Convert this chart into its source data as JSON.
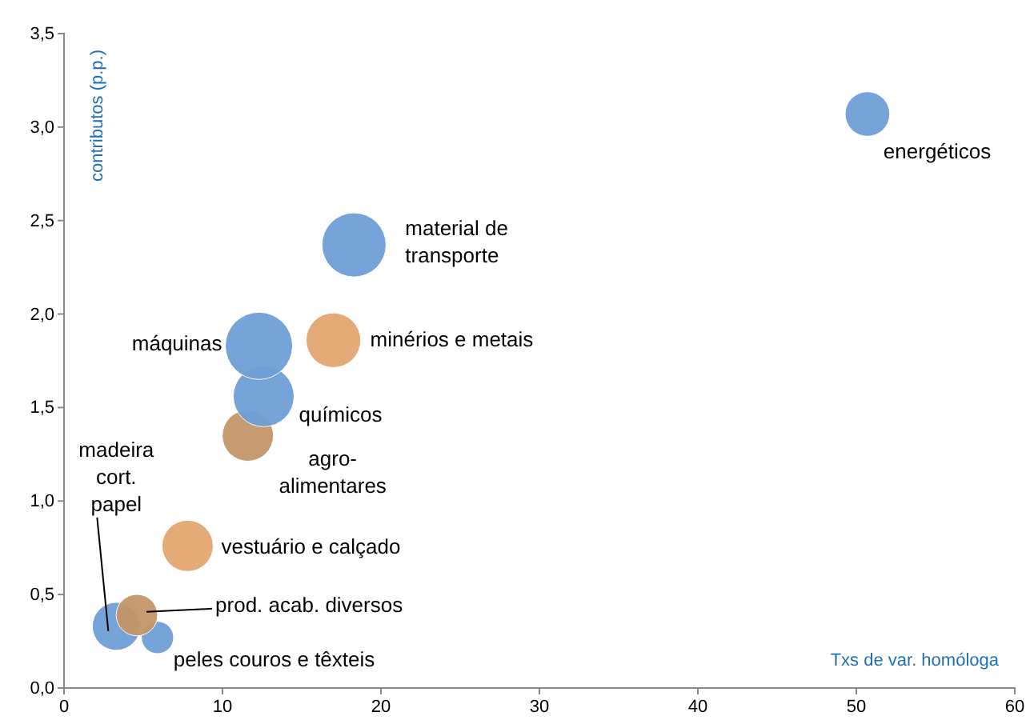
{
  "chart_data": {
    "type": "bubble",
    "xlabel": "Txs de var. homóloga",
    "ylabel": "contributos (p.p.)",
    "x": [
      50.7,
      18.3,
      12.3,
      17.0,
      12.6,
      11.6,
      7.8,
      4.6,
      3.3,
      5.9
    ],
    "values": [
      3.07,
      2.37,
      1.83,
      1.86,
      1.56,
      1.35,
      0.76,
      0.39,
      0.33,
      0.27
    ],
    "sizes": [
      0.44,
      0.91,
      1,
      0.66,
      0.82,
      0.58,
      0.58,
      0.38,
      0.51,
      0.23
    ],
    "colors": [
      "#6f9fd6",
      "#6f9fd6",
      "#6f9fd6",
      "#e3a670",
      "#6f9fd6",
      "#c4966a",
      "#e3a670",
      "#c4966a",
      "#6f9fd6",
      "#6f9fd6"
    ],
    "annotations": [
      {
        "text": "energéticos",
        "x": 50.7,
        "y": 3.07
      },
      {
        "text": "material de\ntransporte",
        "x": 18.3,
        "y": 2.37
      },
      {
        "text": "máquinas",
        "x": 12.3,
        "y": 1.83
      },
      {
        "text": "minérios e metais",
        "x": 17.0,
        "y": 1.86
      },
      {
        "text": "químicos",
        "x": 12.6,
        "y": 1.56
      },
      {
        "text": "agro-\nalimentares",
        "x": 11.6,
        "y": 1.35
      },
      {
        "text": "vestuário e calçado",
        "x": 7.8,
        "y": 0.76
      },
      {
        "text": "prod. acab. diversos",
        "x": 4.6,
        "y": 0.39
      },
      {
        "text": "madeira\ncort.\npapel",
        "x": 3.3,
        "y": 0.33
      },
      {
        "text": "peles couros e têxteis",
        "x": 5.9,
        "y": 0.27
      }
    ],
    "xlim": [
      0,
      60
    ],
    "xticks": [
      0,
      10,
      20,
      30,
      40,
      50,
      60
    ],
    "ylim": [
      0,
      3.5
    ],
    "yticks": [
      {
        "value": 0,
        "label": "0,0"
      },
      {
        "value": 0.5,
        "label": "0,5"
      },
      {
        "value": 1,
        "label": "1,0"
      },
      {
        "value": 1.5,
        "label": "1,5"
      },
      {
        "value": 2,
        "label": "2,0"
      },
      {
        "value": 2.5,
        "label": "2,5"
      },
      {
        "value": 3,
        "label": "3,0"
      },
      {
        "value": 3.5,
        "label": "3,5"
      }
    ],
    "grid": false
  }
}
